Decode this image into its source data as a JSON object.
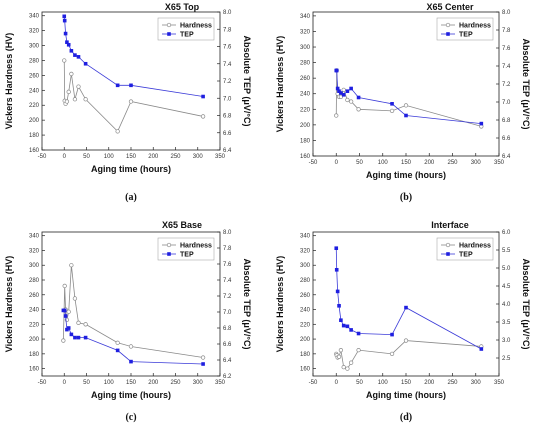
{
  "colors": {
    "hardness": "#8a8a8a",
    "tep": "#3b3bd8",
    "tep_marker": "#1f1fe0",
    "axis": "#222222"
  },
  "chart_data": [
    {
      "type": "line",
      "title": "X65 Top",
      "caption": "(a)",
      "xlabel": "Aging time (hours)",
      "ylabel": "Vickers Hardness (HV)",
      "y2label": "Absolute TEP  (μV/°C)",
      "xlim": [
        -50,
        350
      ],
      "xticks": [
        -50,
        0,
        50,
        100,
        150,
        200,
        250,
        300,
        350
      ],
      "ylim": [
        160,
        345
      ],
      "yticks": [
        160,
        180,
        200,
        220,
        240,
        260,
        280,
        300,
        320,
        340
      ],
      "y2lim": [
        6.4,
        8.0
      ],
      "y2ticks": [
        6.4,
        6.6,
        6.8,
        7.0,
        7.2,
        7.4,
        7.6,
        7.8,
        8.0
      ],
      "legend": {
        "position": "top-right",
        "entries": [
          "Hardness",
          "TEP"
        ]
      },
      "series": [
        {
          "name": "Hardness",
          "axis": "left",
          "marker": "open-circle",
          "x": [
            0,
            1,
            3,
            6,
            10,
            16,
            24,
            32,
            48,
            120,
            150,
            312
          ],
          "y": [
            280,
            226,
            222,
            225,
            238,
            262,
            228,
            245,
            228,
            185,
            225,
            205
          ]
        },
        {
          "name": "TEP",
          "axis": "right",
          "marker": "filled-square",
          "x": [
            0,
            1,
            3,
            6,
            10,
            16,
            24,
            32,
            48,
            120,
            150,
            312
          ],
          "y": [
            7.95,
            7.9,
            7.75,
            7.65,
            7.62,
            7.55,
            7.5,
            7.48,
            7.4,
            7.15,
            7.15,
            7.02
          ]
        }
      ]
    },
    {
      "type": "line",
      "title": "X65 Center",
      "caption": "(b)",
      "xlabel": "Aging time (hours)",
      "ylabel": "Vickers Hardness (HV)",
      "y2label": "Absolute TEP  (μV/°C)",
      "xlim": [
        -50,
        350
      ],
      "xticks": [
        -50,
        0,
        50,
        100,
        150,
        200,
        250,
        300,
        350
      ],
      "ylim": [
        160,
        345
      ],
      "yticks": [
        160,
        180,
        200,
        220,
        240,
        260,
        280,
        300,
        320,
        340
      ],
      "y2lim": [
        6.4,
        8.0
      ],
      "y2ticks": [
        6.4,
        6.6,
        6.8,
        7.0,
        7.2,
        7.4,
        7.6,
        7.8,
        8.0
      ],
      "legend": {
        "position": "top-right",
        "entries": [
          "Hardness",
          "TEP"
        ]
      },
      "series": [
        {
          "name": "Hardness",
          "axis": "left",
          "marker": "open-circle",
          "x": [
            0,
            1,
            3,
            6,
            10,
            16,
            24,
            32,
            48,
            120,
            150,
            312
          ],
          "y": [
            212,
            270,
            240,
            236,
            236,
            245,
            232,
            230,
            220,
            218,
            225,
            198
          ]
        },
        {
          "name": "TEP",
          "axis": "right",
          "marker": "filled-square",
          "x": [
            0,
            1,
            3,
            6,
            10,
            16,
            24,
            32,
            48,
            120,
            150,
            312
          ],
          "y": [
            7.35,
            7.35,
            7.15,
            7.12,
            7.1,
            7.08,
            7.12,
            7.15,
            7.05,
            6.98,
            6.85,
            6.76
          ]
        }
      ]
    },
    {
      "type": "line",
      "title": "X65 Base",
      "caption": "(c)",
      "xlabel": "Aging time (hours)",
      "ylabel": "Vickers Hardness (HV)",
      "y2label": "Absolute TEP  (μV/°C)",
      "xlim": [
        -50,
        350
      ],
      "xticks": [
        -50,
        0,
        50,
        100,
        150,
        200,
        250,
        300,
        350
      ],
      "ylim": [
        150,
        345
      ],
      "yticks": [
        160,
        180,
        200,
        220,
        240,
        260,
        280,
        300,
        320,
        340
      ],
      "y2lim": [
        6.2,
        8.0
      ],
      "y2ticks": [
        6.2,
        6.4,
        6.6,
        6.8,
        7.0,
        7.2,
        7.4,
        7.6,
        7.8,
        8.0
      ],
      "legend": {
        "position": "top-right",
        "entries": [
          "Hardness",
          "TEP"
        ]
      },
      "series": [
        {
          "name": "Hardness",
          "axis": "left",
          "marker": "open-circle",
          "x": [
            -2,
            1,
            3,
            6,
            10,
            16,
            24,
            32,
            48,
            120,
            150,
            312
          ],
          "y": [
            198,
            272,
            240,
            226,
            237,
            300,
            255,
            222,
            220,
            195,
            190,
            175
          ]
        },
        {
          "name": "TEP",
          "axis": "right",
          "marker": "filled-square",
          "x": [
            -2,
            1,
            3,
            6,
            10,
            16,
            24,
            32,
            48,
            120,
            150,
            312
          ],
          "y": [
            7.02,
            7.02,
            6.95,
            6.78,
            6.8,
            6.72,
            6.68,
            6.68,
            6.68,
            6.52,
            6.38,
            6.35
          ]
        }
      ]
    },
    {
      "type": "line",
      "title": "Interface",
      "caption": "(d)",
      "xlabel": "Aging time (hours)",
      "ylabel": "Vickers Hardness (HV)",
      "y2label": "Absolute TEP  (μV/°C)",
      "xlim": [
        -50,
        350
      ],
      "xticks": [
        -50,
        0,
        50,
        100,
        150,
        200,
        250,
        300,
        350
      ],
      "ylim": [
        150,
        345
      ],
      "yticks": [
        160,
        180,
        200,
        220,
        240,
        260,
        280,
        300,
        320,
        340
      ],
      "y2lim": [
        2.0,
        6.0
      ],
      "y2ticks": [
        2.5,
        3.0,
        3.5,
        4.0,
        4.5,
        5.0,
        5.5,
        6.0
      ],
      "legend": {
        "position": "top-right",
        "entries": [
          "Hardness",
          "TEP"
        ]
      },
      "series": [
        {
          "name": "Hardness",
          "axis": "left",
          "marker": "open-circle",
          "x": [
            0,
            1,
            3,
            6,
            10,
            16,
            24,
            32,
            48,
            120,
            150,
            312
          ],
          "y": [
            180,
            178,
            175,
            176,
            185,
            162,
            160,
            168,
            185,
            180,
            198,
            190
          ]
        },
        {
          "name": "TEP",
          "axis": "right",
          "marker": "filled-square",
          "x": [
            0,
            1,
            3,
            6,
            10,
            16,
            24,
            32,
            48,
            120,
            150,
            312
          ],
          "y": [
            5.55,
            4.95,
            4.35,
            3.95,
            3.55,
            3.4,
            3.38,
            3.28,
            3.18,
            3.15,
            3.9,
            2.75
          ]
        }
      ]
    }
  ]
}
